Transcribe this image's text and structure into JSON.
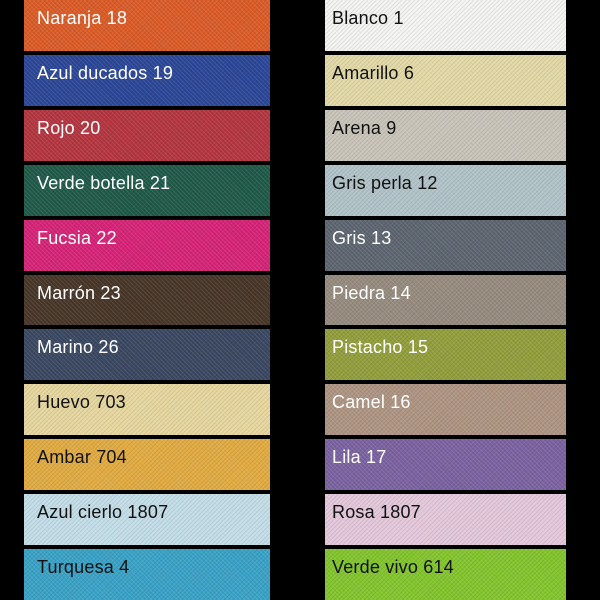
{
  "page": {
    "background": "#000000",
    "description_colors": {
      "dark_text": "#121212",
      "light_text": "#ffffff"
    }
  },
  "columns": [
    {
      "name": "left",
      "swatches": [
        {
          "label": "Naranja 18",
          "color": "#db5b27",
          "text_color": "#ffffff"
        },
        {
          "label": "Azul ducados 19",
          "color": "#2b4697",
          "text_color": "#ffffff"
        },
        {
          "label": "Rojo 20",
          "color": "#b43540",
          "text_color": "#ffffff"
        },
        {
          "label": "Verde botella 21",
          "color": "#1f5947",
          "text_color": "#ffffff"
        },
        {
          "label": "Fucsia 22",
          "color": "#d62277",
          "text_color": "#ffffff"
        },
        {
          "label": "Marrón 23",
          "color": "#473527",
          "text_color": "#ffffff"
        },
        {
          "label": "Marino 26",
          "color": "#3a4761",
          "text_color": "#ffffff"
        },
        {
          "label": "Huevo 703",
          "color": "#e7d79f",
          "text_color": "#121212"
        },
        {
          "label": "Ambar 704",
          "color": "#e1ab41",
          "text_color": "#121212"
        },
        {
          "label": "Azul cierlo 1807",
          "color": "#c3dee8",
          "text_color": "#121212"
        },
        {
          "label": "Turquesa 4",
          "color": "#39a2c6",
          "text_color": "#121212"
        }
      ]
    },
    {
      "name": "right",
      "swatches": [
        {
          "label": "Blanco 1",
          "color": "#f4f4f2",
          "text_color": "#121212"
        },
        {
          "label": "Amarillo 6",
          "color": "#e3d9a7",
          "text_color": "#121212"
        },
        {
          "label": "Arena 9",
          "color": "#c9c4b9",
          "text_color": "#121212"
        },
        {
          "label": "Gris perla 12",
          "color": "#b1c3c8",
          "text_color": "#121212"
        },
        {
          "label": "Gris 13",
          "color": "#5d6570",
          "text_color": "#ffffff"
        },
        {
          "label": "Piedra 14",
          "color": "#968b7e",
          "text_color": "#ffffff"
        },
        {
          "label": "Pistacho 15",
          "color": "#929e3b",
          "text_color": "#ffffff"
        },
        {
          "label": "Camel 16",
          "color": "#ae9482",
          "text_color": "#ffffff"
        },
        {
          "label": "Lila 17",
          "color": "#7b62a1",
          "text_color": "#ffffff"
        },
        {
          "label": "Rosa 1807",
          "color": "#e4c8db",
          "text_color": "#121212"
        },
        {
          "label": "Verde vivo 614",
          "color": "#82c52c",
          "text_color": "#121212"
        }
      ]
    }
  ]
}
